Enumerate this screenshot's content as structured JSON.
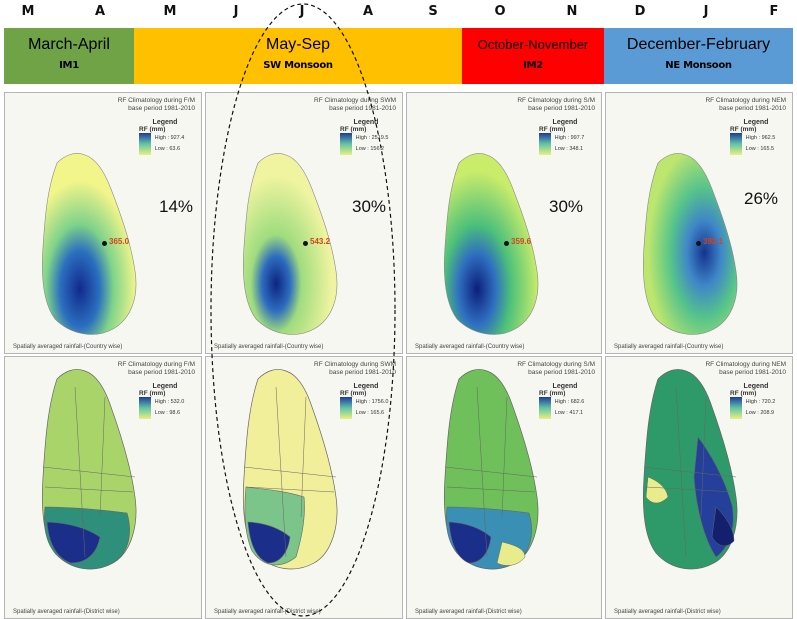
{
  "months": [
    "M",
    "A",
    "M",
    "J",
    "J",
    "A",
    "S",
    "O",
    "N",
    "D",
    "J",
    "F"
  ],
  "seasons": [
    {
      "name": "March-April",
      "code": "IM1",
      "color": "#70a346"
    },
    {
      "name": "May-Sep",
      "code": "SW Monsoon",
      "color": "#ffc000"
    },
    {
      "name": "October-November",
      "code": "IM2",
      "color": "#ff0000"
    },
    {
      "name": "December-February",
      "code": "NE Monsoon",
      "color": "#5b9bd5"
    }
  ],
  "top_panels": [
    {
      "title1": "RF Climatology during F/M",
      "title2": "base period 1981-2010",
      "legend": "Legend",
      "unit": "RF (mm)",
      "high": "High : 927.4",
      "low": "Low : 63.6",
      "pct": "14%",
      "center": "365.0",
      "footnote": "Spatially averaged rainfall-(Country wise)"
    },
    {
      "title1": "RF Climatology during SWM",
      "title2": "base period 1981-2010",
      "legend": "Legend",
      "unit": "RF (mm)",
      "high": "High : 2519.5",
      "low": "Low : 156.2",
      "pct": "30%",
      "center": "543.2",
      "footnote": "Spatially averaged rainfall-(Country wise)"
    },
    {
      "title1": "RF Climatology during S/M",
      "title2": "base period 1981-2010",
      "legend": "Legend",
      "unit": "RF (mm)",
      "high": "High : 997.7",
      "low": "Low : 348.1",
      "pct": "30%",
      "center": "359.6",
      "footnote": "Spatially averaged rainfall-(Country wise)"
    },
    {
      "title1": "RF Climatology during NEM",
      "title2": "base period 1981-2010",
      "legend": "Legend",
      "unit": "RF (mm)",
      "high": "High : 962.5",
      "low": "Low : 165.5",
      "pct": "26%",
      "center": "392.1",
      "footnote": "Spatially averaged rainfall-(Country wise)"
    }
  ],
  "bottom_panels": [
    {
      "title1": "RF Climatology during F/M",
      "title2": "base period 1981-2010",
      "legend": "Legend",
      "unit": "RF (mm)",
      "high": "High : 532.0",
      "low": "Low : 98.6",
      "footnote": "Spatially averaged rainfall-(District wise)"
    },
    {
      "title1": "RF Climatology during SWM",
      "title2": "base period 1981-2010",
      "legend": "Legend",
      "unit": "RF (mm)",
      "high": "High : 1756.0",
      "low": "Low : 165.6",
      "footnote": "Spatially averaged rainfall-(District wise)"
    },
    {
      "title1": "RF Climatology during S/M",
      "title2": "base period 1981-2010",
      "legend": "Legend",
      "unit": "RF (mm)",
      "high": "High : 682.6",
      "low": "Low : 417.1",
      "footnote": "Spatially averaged rainfall-(District wise)"
    },
    {
      "title1": "RF Climatology during NEM",
      "title2": "base period 1981-2010",
      "legend": "Legend",
      "unit": "RF (mm)",
      "high": "High : 720.2",
      "low": "Low : 208.9",
      "footnote": "Spatially averaged rainfall-(District wise)"
    }
  ]
}
